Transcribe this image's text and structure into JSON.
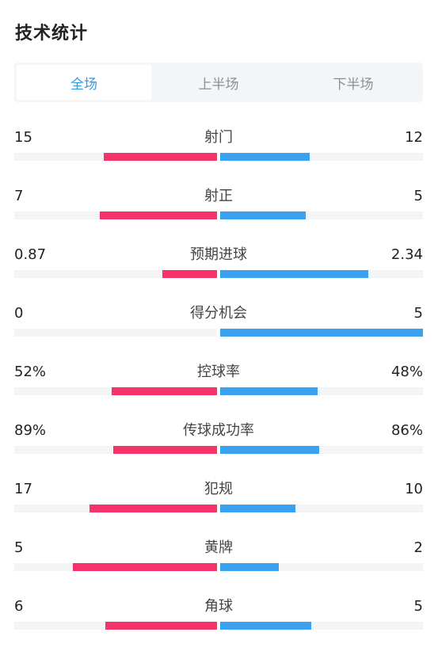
{
  "title": "技术统计",
  "tabs": [
    {
      "label": "全场",
      "active": true
    },
    {
      "label": "上半场",
      "active": false
    },
    {
      "label": "下半场",
      "active": false
    }
  ],
  "colors": {
    "home": "#f6326b",
    "away": "#3aa0f0",
    "active_tab": "#2f9be6"
  },
  "stats": [
    {
      "name": "射门",
      "left": "15",
      "right": "12",
      "left_fill": 0.56,
      "right_fill": 0.44
    },
    {
      "name": "射正",
      "left": "7",
      "right": "5",
      "left_fill": 0.58,
      "right_fill": 0.42
    },
    {
      "name": "预期进球",
      "left": "0.87",
      "right": "2.34",
      "left_fill": 0.27,
      "right_fill": 0.73
    },
    {
      "name": "得分机会",
      "left": "0",
      "right": "5",
      "left_fill": 0.0,
      "right_fill": 1.0
    },
    {
      "name": "控球率",
      "left": "52%",
      "right": "48%",
      "left_fill": 0.52,
      "right_fill": 0.48
    },
    {
      "name": "传球成功率",
      "left": "89%",
      "right": "86%",
      "left_fill": 0.51,
      "right_fill": 0.49
    },
    {
      "name": "犯规",
      "left": "17",
      "right": "10",
      "left_fill": 0.63,
      "right_fill": 0.37
    },
    {
      "name": "黄牌",
      "left": "5",
      "right": "2",
      "left_fill": 0.71,
      "right_fill": 0.29
    },
    {
      "name": "角球",
      "left": "6",
      "right": "5",
      "left_fill": 0.55,
      "right_fill": 0.45
    }
  ]
}
